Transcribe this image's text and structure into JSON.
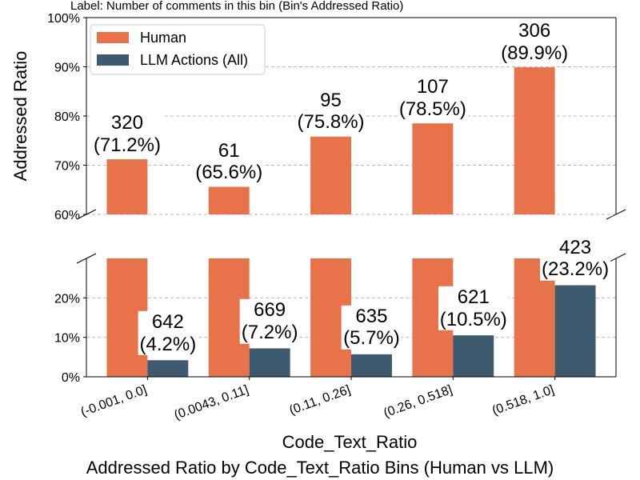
{
  "chart_data": {
    "type": "bar",
    "title": "Addressed Ratio by Code_Text_Ratio Bins (Human vs LLM)",
    "annotation": "Label: Number of comments in this bin (Bin's Addressed Ratio)",
    "x_label": "Code_Text_Ratio",
    "y_label": "Addressed Ratio",
    "categories": [
      "(-0.001, 0.0]",
      "(0.0043, 0.11]",
      "(0.11, 0.26]",
      "(0.26, 0.518]",
      "(0.518, 1.0]"
    ],
    "series": [
      {
        "name": "Human",
        "color": "#e8734a",
        "values": [
          71.2,
          65.6,
          75.8,
          78.5,
          89.9
        ],
        "value_labels": [
          "320\n(71.2%)",
          "61\n(65.6%)",
          "95\n(75.8%)",
          "107\n(78.5%)",
          "306\n(89.9%)"
        ]
      },
      {
        "name": "LLM Actions (All)",
        "color": "#3d5a6e",
        "values": [
          4.2,
          7.2,
          5.7,
          10.5,
          23.2
        ],
        "value_labels": [
          "642\n(4.2%)",
          "669\n(7.2%)",
          "635\n(5.7%)",
          "621\n(10.5%)",
          "423\n(23.2%)"
        ]
      }
    ],
    "ylim_upper": [
      60,
      100
    ],
    "yticks_upper": [
      {
        "value": 60,
        "label": "60%"
      },
      {
        "value": 70,
        "label": "70%"
      },
      {
        "value": 80,
        "label": "80%"
      },
      {
        "value": 90,
        "label": "90%"
      },
      {
        "value": 100,
        "label": "100%"
      }
    ],
    "ylim": [
      0,
      30
    ],
    "yticks": [
      {
        "value": 0,
        "label": "0%"
      },
      {
        "value": 10,
        "label": "10%"
      },
      {
        "value": 20,
        "label": "20%"
      }
    ],
    "grid": true,
    "legend": "upper left"
  }
}
